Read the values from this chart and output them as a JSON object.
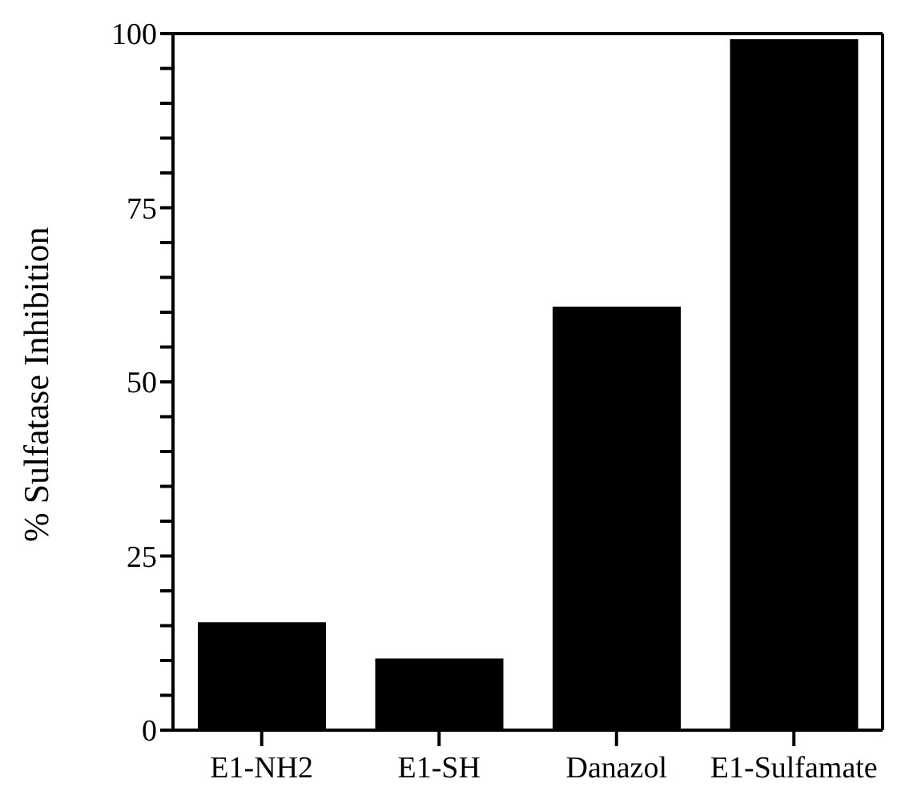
{
  "chart_data": {
    "type": "bar",
    "ylabel": "% Sulfatase Inhibition",
    "categories": [
      "E1-NH2",
      "E1-SH",
      "Danazol",
      "E1-Sulfamate"
    ],
    "values": [
      15.5,
      10.3,
      60.8,
      99.2
    ],
    "color": "#000000",
    "ylim": [
      0,
      100
    ],
    "yticks": [
      0,
      {
        "value": 5,
        "label": null
      },
      {
        "value": 10,
        "label": null
      },
      {
        "value": 15,
        "label": null
      },
      {
        "value": 20,
        "label": null
      },
      25,
      {
        "value": 30,
        "label": null
      },
      {
        "value": 35,
        "label": null
      },
      {
        "value": 40,
        "label": null
      },
      {
        "value": 45,
        "label": null
      },
      50,
      {
        "value": 55,
        "label": null
      },
      {
        "value": 60,
        "label": null
      },
      {
        "value": 65,
        "label": null
      },
      {
        "value": 70,
        "label": null
      },
      75,
      {
        "value": 80,
        "label": null
      },
      {
        "value": 85,
        "label": null
      },
      {
        "value": 90,
        "label": null
      },
      {
        "value": 95,
        "label": null
      },
      100
    ],
    "grid": false,
    "legend": false
  }
}
